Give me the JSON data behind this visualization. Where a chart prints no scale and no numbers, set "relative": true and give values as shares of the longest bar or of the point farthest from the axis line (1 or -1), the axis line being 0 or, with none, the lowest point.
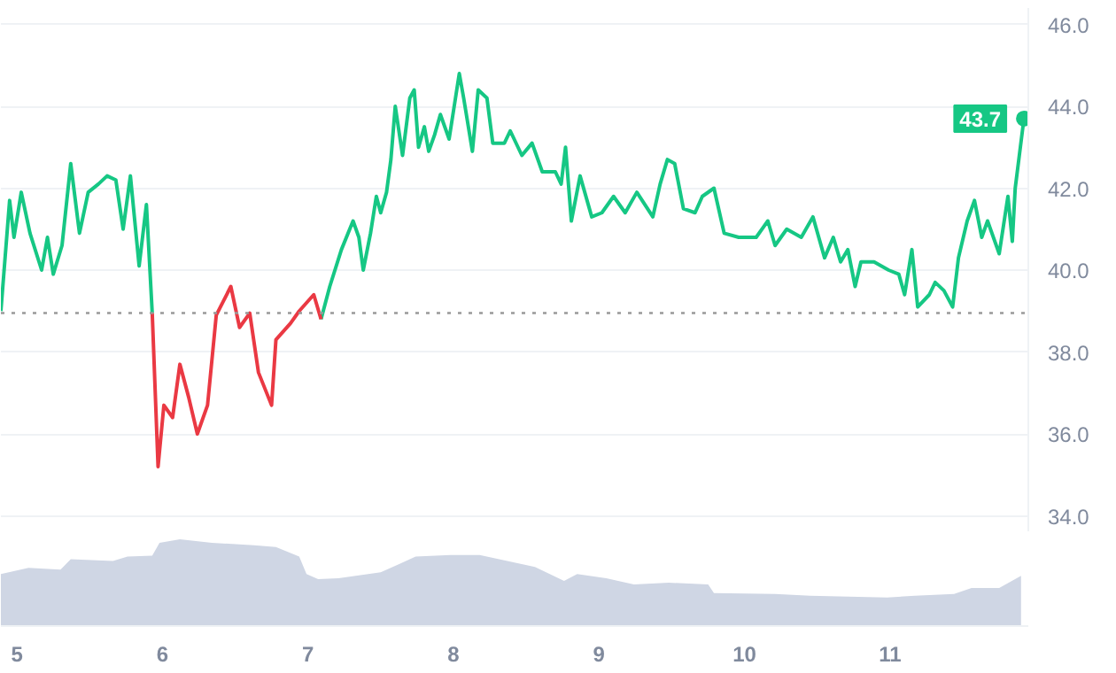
{
  "chart_data": [
    {
      "type": "line",
      "xlim": [
        4.89,
        11.95
      ],
      "ylim": [
        33.6,
        46.4
      ],
      "yticks": [
        {
          "value": 34,
          "label": "34.0"
        },
        {
          "value": 36,
          "label": "36.0"
        },
        {
          "value": 38,
          "label": "38.0"
        },
        {
          "value": 40,
          "label": "40.0"
        },
        {
          "value": 42,
          "label": "42.0"
        },
        {
          "value": 44,
          "label": "44.0"
        },
        {
          "value": 46,
          "label": "46.0"
        }
      ],
      "grid": "y",
      "tick_labels": "y",
      "series": [
        {
          "color": "#16c784",
          "x": [
            4.89,
            4.91,
            4.95,
            4.98,
            5.03,
            5.09,
            5.17,
            5.21,
            5.25,
            5.31,
            5.37,
            5.43,
            5.49,
            5.56,
            5.62,
            5.68,
            5.73,
            5.78,
            5.84,
            5.89,
            5.93,
            5.97,
            6.01,
            6.07,
            6.12,
            6.18,
            6.24,
            6.31,
            6.37,
            6.47,
            6.53,
            6.6,
            6.66,
            6.75,
            6.78,
            6.88,
            6.94,
            7.04,
            7.09,
            7.15,
            7.23,
            7.31,
            7.35,
            7.38,
            7.43,
            7.47,
            7.5,
            7.54,
            7.57,
            7.6,
            7.65,
            7.7,
            7.73,
            7.76,
            7.8,
            7.83,
            7.87,
            7.91,
            7.97,
            8.04,
            8.07,
            8.13,
            8.17,
            8.23,
            8.27,
            8.35,
            8.39,
            8.47,
            8.54,
            8.61,
            8.7,
            8.74,
            8.77,
            8.81,
            8.87,
            8.95,
            9.02,
            9.1,
            9.18,
            9.26,
            9.37,
            9.42,
            9.47,
            9.52,
            9.58,
            9.66,
            9.71,
            9.79,
            9.86,
            9.96,
            10.08,
            10.16,
            10.21,
            10.29,
            10.39,
            10.47,
            10.55,
            10.61,
            10.66,
            10.71,
            10.76,
            10.8,
            10.89,
            10.99,
            11.06,
            11.1,
            11.15,
            11.19,
            11.27,
            11.31,
            11.37,
            11.43,
            11.47,
            11.53,
            11.58,
            11.63,
            11.67,
            11.75,
            11.81,
            11.84,
            11.86,
            11.92
          ],
          "values": [
            39.0,
            39.9,
            41.7,
            40.8,
            41.9,
            40.9,
            40.0,
            40.8,
            39.9,
            40.6,
            42.6,
            40.9,
            41.9,
            42.1,
            42.3,
            42.2,
            41.0,
            42.3,
            40.1,
            41.6,
            38.95,
            null,
            null,
            null,
            null,
            null,
            null,
            null,
            null,
            null,
            null,
            null,
            null,
            null,
            null,
            null,
            null,
            null,
            38.8,
            39.6,
            40.5,
            41.2,
            40.8,
            40.0,
            40.9,
            41.8,
            41.4,
            41.9,
            42.7,
            44.0,
            42.8,
            44.2,
            44.4,
            43.0,
            43.5,
            42.9,
            43.3,
            43.8,
            43.2,
            44.8,
            44.2,
            42.9,
            44.4,
            44.2,
            43.1,
            43.1,
            43.4,
            42.8,
            43.1,
            42.4,
            42.4,
            42.1,
            43.0,
            41.2,
            42.3,
            41.3,
            41.4,
            41.8,
            41.4,
            41.9,
            41.3,
            42.1,
            42.7,
            42.6,
            41.5,
            41.4,
            41.8,
            42.0,
            40.9,
            40.8,
            40.8,
            41.2,
            40.6,
            41.0,
            40.8,
            41.3,
            40.3,
            40.8,
            40.2,
            40.5,
            39.6,
            40.2,
            40.2,
            40.0,
            39.9,
            39.4,
            40.5,
            39.1,
            39.4,
            39.7,
            39.5,
            39.1,
            40.3,
            41.2,
            41.7,
            40.8,
            41.2,
            40.4,
            41.8,
            40.7,
            42.0,
            43.7
          ]
        },
        {
          "color": "#ea3943",
          "x": [
            5.93,
            5.97,
            6.01,
            6.07,
            6.12,
            6.18,
            6.24,
            6.31,
            6.37,
            6.47,
            6.53,
            6.6,
            6.66,
            6.75,
            6.78,
            6.88,
            6.94,
            7.04,
            7.09
          ],
          "values": [
            38.95,
            35.2,
            36.7,
            36.4,
            37.7,
            36.9,
            36.0,
            36.7,
            38.9,
            39.6,
            38.6,
            38.95,
            37.5,
            36.7,
            38.3,
            38.7,
            39.0,
            39.4,
            38.8
          ]
        }
      ],
      "ref_lines": [
        {
          "axis": "y",
          "value": 38.95,
          "color": "#999999",
          "line_style": "dotted"
        }
      ],
      "annotations": [
        {
          "text": "43.7",
          "x": 11.92,
          "y": 43.7
        }
      ]
    },
    {
      "type": "area",
      "relative": true,
      "color": "#cfd6e4",
      "xlim": [
        4.89,
        11.95
      ],
      "xticks": [
        5,
        6,
        7,
        8,
        9,
        10,
        11
      ],
      "x": [
        4.89,
        5.08,
        5.3,
        5.37,
        5.66,
        5.76,
        5.93,
        5.98,
        6.12,
        6.34,
        6.63,
        6.78,
        6.94,
        6.99,
        7.07,
        7.21,
        7.5,
        7.62,
        7.74,
        7.98,
        8.18,
        8.37,
        8.56,
        8.76,
        8.85,
        9.05,
        9.24,
        9.48,
        9.75,
        9.79,
        10.21,
        10.45,
        10.98,
        11.17,
        11.44,
        11.56,
        11.75,
        11.9
      ],
      "values": [
        0.6,
        0.67,
        0.65,
        0.77,
        0.75,
        0.8,
        0.81,
        0.96,
        1.0,
        0.96,
        0.93,
        0.91,
        0.8,
        0.6,
        0.54,
        0.55,
        0.62,
        0.71,
        0.8,
        0.82,
        0.82,
        0.75,
        0.68,
        0.52,
        0.6,
        0.55,
        0.48,
        0.5,
        0.48,
        0.38,
        0.37,
        0.35,
        0.33,
        0.35,
        0.37,
        0.44,
        0.44,
        0.58
      ]
    }
  ]
}
